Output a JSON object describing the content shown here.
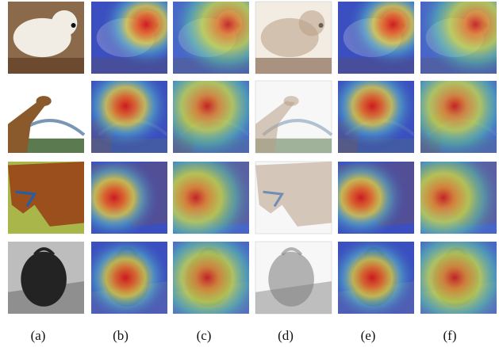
{
  "figure": {
    "panel_labels": [
      "(a)",
      "(b)",
      "(c)",
      "(d)",
      "(e)",
      "(f)"
    ]
  }
}
